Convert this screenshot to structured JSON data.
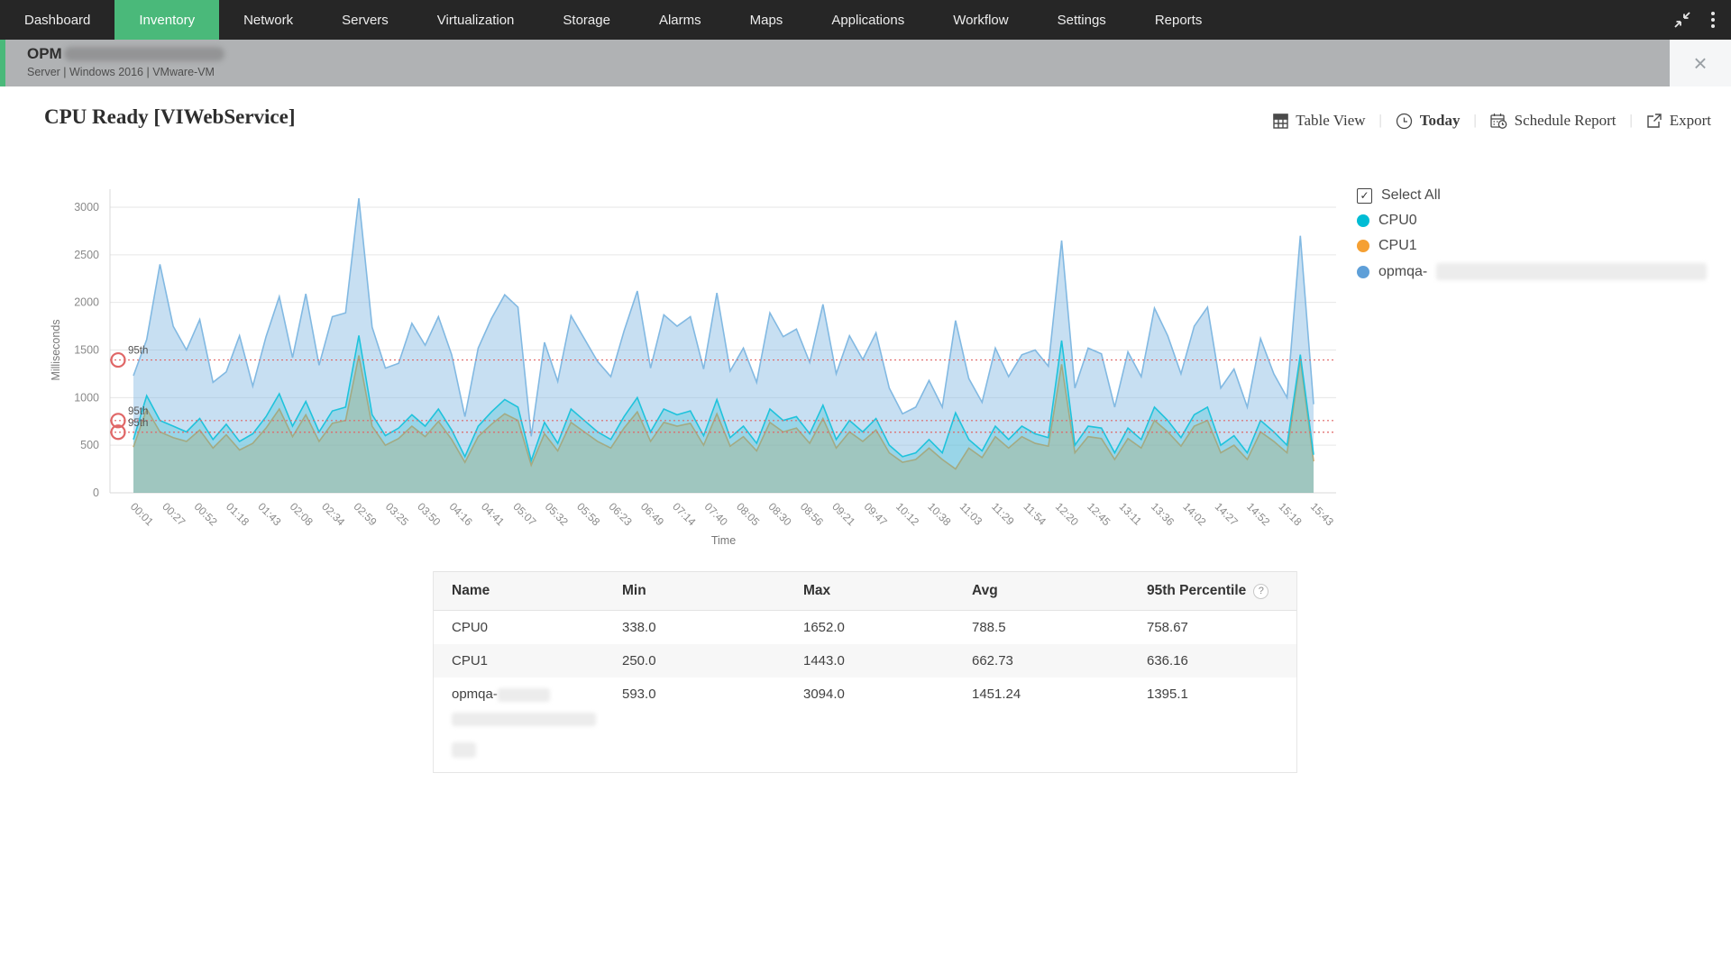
{
  "nav": {
    "items": [
      "Dashboard",
      "Inventory",
      "Network",
      "Servers",
      "Virtualization",
      "Storage",
      "Alarms",
      "Maps",
      "Applications",
      "Workflow",
      "Settings",
      "Reports"
    ],
    "active": "Inventory",
    "active_color": "#4ab97a"
  },
  "device_banner": {
    "title": "OPM",
    "subtitle": "Server | Windows 2016  | VMware-VM",
    "close_label": "×"
  },
  "page": {
    "title": "CPU Ready [VIWebService]"
  },
  "toolbar": {
    "table_view": "Table View",
    "today": "Today",
    "schedule_report": "Schedule Report",
    "export": "Export",
    "separator": "|"
  },
  "legend": {
    "select_all": "Select All",
    "checkmark": "✓",
    "items": [
      {
        "label": "CPU0",
        "color": "#00bcd4"
      },
      {
        "label": "CPU1",
        "color": "#f5a033"
      },
      {
        "label": "opmqa-",
        "color": "#5e9fd8",
        "redacted": true
      }
    ]
  },
  "chart_data": {
    "type": "area",
    "title": "CPU Ready [VIWebService]",
    "xlabel": "Time",
    "ylabel": "Milliseconds",
    "ylim": [
      0,
      3000
    ],
    "yticks": [
      0,
      500,
      1000,
      1500,
      2000,
      2500,
      3000
    ],
    "grid": true,
    "legend_position": "right",
    "x_ticklabels": [
      "00:01",
      "00:27",
      "00:52",
      "01:18",
      "01:43",
      "02:08",
      "02:34",
      "02:59",
      "03:25",
      "03:50",
      "04:16",
      "04:41",
      "05:07",
      "05:32",
      "05:58",
      "06:23",
      "06:49",
      "07:14",
      "07:40",
      "08:05",
      "08:30",
      "08:56",
      "09:21",
      "09:47",
      "10:12",
      "10:38",
      "11:03",
      "11:29",
      "11:54",
      "12:20",
      "12:45",
      "13:11",
      "13:36",
      "14:02",
      "14:27",
      "14:52",
      "15:18",
      "15:43"
    ],
    "percentile_lines": [
      {
        "series": "opmqa-",
        "label": "95th",
        "value": 1395.1,
        "color": "#e06767"
      },
      {
        "series": "CPU0",
        "label": "95th",
        "value": 758.67,
        "color": "#e06767"
      },
      {
        "series": "CPU1",
        "label": "95th",
        "value": 636.16,
        "color": "#e06767"
      }
    ],
    "series": [
      {
        "name": "opmqa-",
        "color": "#82b9e2",
        "fill": "rgba(130,185,226,0.45)",
        "values": [
          1230,
          1610,
          2400,
          1750,
          1500,
          1820,
          1160,
          1270,
          1650,
          1120,
          1640,
          2060,
          1420,
          2090,
          1340,
          1850,
          1890,
          3094,
          1740,
          1310,
          1360,
          1780,
          1550,
          1850,
          1450,
          800,
          1520,
          1830,
          2080,
          1950,
          593,
          1580,
          1170,
          1860,
          1620,
          1380,
          1220,
          1700,
          2120,
          1310,
          1870,
          1750,
          1850,
          1300,
          2100,
          1280,
          1520,
          1160,
          1890,
          1640,
          1720,
          1370,
          1980,
          1250,
          1650,
          1400,
          1680,
          1100,
          830,
          900,
          1180,
          900,
          1810,
          1200,
          950,
          1520,
          1220,
          1450,
          1500,
          1330,
          2650,
          1100,
          1520,
          1460,
          900,
          1480,
          1220,
          1940,
          1650,
          1250,
          1750,
          1950,
          1100,
          1300,
          900,
          1620,
          1250,
          1000,
          2700,
          930
        ]
      },
      {
        "name": "CPU1",
        "color": "#d69d56",
        "fill": "rgba(222,166,86,0.40)",
        "values": [
          480,
          880,
          640,
          580,
          540,
          660,
          470,
          610,
          450,
          520,
          680,
          880,
          590,
          820,
          540,
          730,
          760,
          1443,
          700,
          500,
          570,
          700,
          590,
          750,
          560,
          320,
          590,
          720,
          830,
          760,
          290,
          620,
          440,
          740,
          640,
          540,
          470,
          680,
          850,
          540,
          740,
          700,
          730,
          500,
          830,
          490,
          590,
          440,
          740,
          640,
          680,
          520,
          780,
          470,
          640,
          540,
          660,
          420,
          320,
          350,
          470,
          350,
          250,
          470,
          370,
          590,
          470,
          590,
          520,
          490,
          1350,
          420,
          590,
          570,
          350,
          570,
          470,
          760,
          640,
          490,
          700,
          760,
          420,
          500,
          350,
          640,
          540,
          420,
          1400,
          330
        ]
      },
      {
        "name": "CPU0",
        "color": "#1fc3dc",
        "fill": "rgba(70,195,215,0.35)",
        "values": [
          560,
          1020,
          760,
          700,
          640,
          780,
          560,
          720,
          540,
          620,
          800,
          1040,
          700,
          960,
          640,
          860,
          900,
          1652,
          820,
          600,
          680,
          820,
          700,
          880,
          660,
          380,
          700,
          850,
          980,
          900,
          338,
          740,
          520,
          880,
          760,
          640,
          560,
          800,
          1000,
          640,
          880,
          820,
          860,
          600,
          980,
          580,
          700,
          520,
          880,
          760,
          800,
          620,
          920,
          560,
          760,
          640,
          780,
          500,
          380,
          420,
          560,
          420,
          840,
          560,
          440,
          700,
          560,
          700,
          620,
          580,
          1600,
          500,
          700,
          680,
          420,
          680,
          560,
          900,
          760,
          580,
          820,
          900,
          500,
          600,
          420,
          760,
          640,
          500,
          1452,
          400
        ]
      }
    ]
  },
  "table": {
    "headers": {
      "name": "Name",
      "min": "Min",
      "max": "Max",
      "avg": "Avg",
      "p95": "95th Percentile",
      "help": "?"
    },
    "rows": [
      {
        "name": "CPU0",
        "min": "338.0",
        "max": "1652.0",
        "avg": "788.5",
        "p95": "758.67"
      },
      {
        "name": "CPU1",
        "min": "250.0",
        "max": "1443.0",
        "avg": "662.73",
        "p95": "636.16"
      },
      {
        "name": "opmqa-",
        "min": "593.0",
        "max": "3094.0",
        "avg": "1451.24",
        "p95": "1395.1",
        "redacted": true
      }
    ]
  }
}
